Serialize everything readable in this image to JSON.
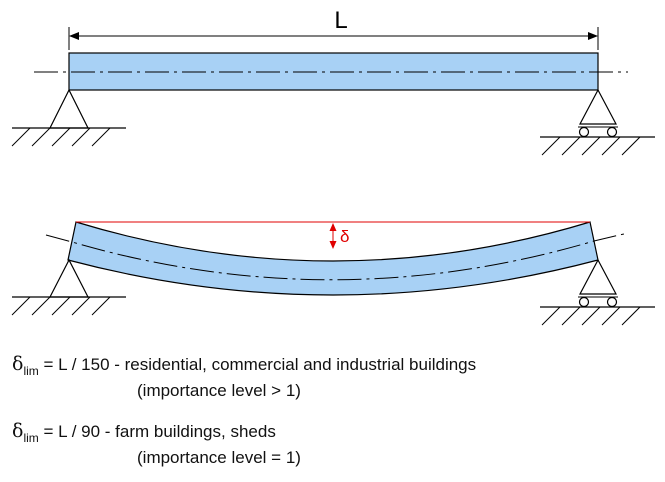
{
  "top_diagram": {
    "span_label": "L"
  },
  "bottom_diagram": {
    "deflection_label": "δ"
  },
  "colors": {
    "beam_fill": "#a8d1f5",
    "outline": "#000000",
    "deflection": "#e00000"
  },
  "limits": [
    {
      "symbol": "δ",
      "subscript": "lim",
      "formula": "= L / 150 - residential, commercial and industrial buildings",
      "note": "(importance level > 1)"
    },
    {
      "symbol": "δ",
      "subscript": "lim",
      "formula": "= L / 90 - farm buildings, sheds",
      "note": "(importance level = 1)"
    }
  ]
}
